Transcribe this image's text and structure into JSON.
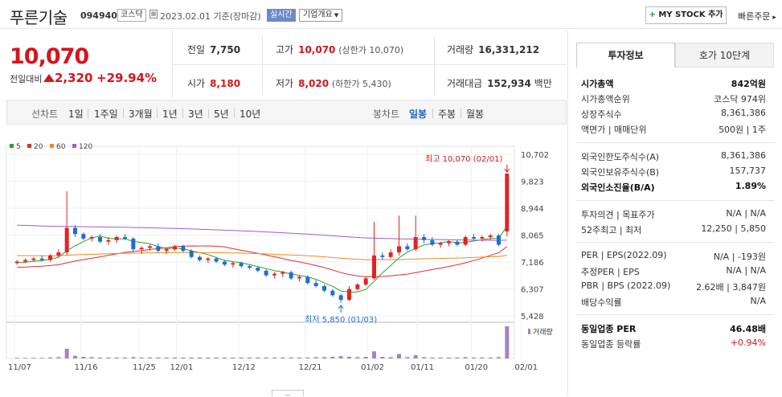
{
  "header": {
    "name": "푸른기술",
    "code": "094940",
    "market": "코스닥",
    "date_text": "2023.02.01 기준(장마감)",
    "live_label": "실시간",
    "overview_label": "기업개요",
    "mystock_label": "MY STOCK 추가",
    "quick_order_label": "빠른주문"
  },
  "quote": {
    "price": "10,070",
    "change_label": "전일대비",
    "change": "2,320",
    "change_pct": "+29.94%",
    "prev_close_label": "전일",
    "prev_close": "7,750",
    "high_label": "고가",
    "high": "10,070",
    "upper_limit": "(상한가 10,070)",
    "volume_label": "거래량",
    "volume": "16,331,212",
    "open_label": "시가",
    "open": "8,180",
    "low_label": "저가",
    "low": "8,020",
    "lower_limit": "(하한가 5,430)",
    "amount_label": "거래대금",
    "amount": "152,934",
    "amount_unit": "백만"
  },
  "chart_tabs": {
    "line_label": "선차트",
    "periods": [
      "1일",
      "1주일",
      "3개월",
      "1년",
      "3년",
      "5년",
      "10년"
    ],
    "candle_label": "봉차트",
    "candle": [
      "일봉",
      "주봉",
      "월봉"
    ],
    "active_candle": "일봉"
  },
  "chart_data": {
    "type": "line",
    "ma_legend": [
      {
        "name": "5",
        "color": "#2ca02c"
      },
      {
        "name": "20",
        "color": "#e02f2f"
      },
      {
        "name": "60",
        "color": "#f08a1c"
      },
      {
        "name": "120",
        "color": "#a05ccc"
      }
    ],
    "y_ticks": [
      "10,702",
      "9,823",
      "8,944",
      "8,065",
      "7,186",
      "6,307",
      "5,428"
    ],
    "ylim": [
      5428,
      10702
    ],
    "x_ticks": [
      "11/07",
      "11/16",
      "11/25",
      "12/01",
      "12/12",
      "12/21",
      "01/02",
      "01/11",
      "01/20",
      "02/01"
    ],
    "high_annotation": "최고 10,070 (02/01)",
    "low_annotation": "최저 5,850 (01/03)",
    "volume_label": "거래량",
    "candles": [
      [
        7150,
        7250,
        7100,
        7200
      ],
      [
        7200,
        7300,
        7150,
        7250
      ],
      [
        7250,
        7350,
        7200,
        7300
      ],
      [
        7300,
        7400,
        7200,
        7250
      ],
      [
        7250,
        7450,
        7200,
        7400
      ],
      [
        7400,
        7600,
        7350,
        7500
      ],
      [
        7500,
        9500,
        7400,
        8300
      ],
      [
        8300,
        8400,
        8000,
        8100
      ],
      [
        8100,
        8150,
        7900,
        7950
      ],
      [
        7950,
        8050,
        7850,
        8000
      ],
      [
        8000,
        8100,
        7800,
        7850
      ],
      [
        7850,
        8000,
        7750,
        7900
      ],
      [
        7900,
        8050,
        7800,
        8000
      ],
      [
        8000,
        8100,
        7900,
        7950
      ],
      [
        7950,
        8000,
        7500,
        7600
      ],
      [
        7600,
        7700,
        7450,
        7650
      ],
      [
        7650,
        7750,
        7550,
        7700
      ],
      [
        7700,
        7800,
        7500,
        7550
      ],
      [
        7550,
        7650,
        7450,
        7600
      ],
      [
        7600,
        7750,
        7550,
        7700
      ],
      [
        7700,
        7750,
        7500,
        7550
      ],
      [
        7550,
        7600,
        7300,
        7350
      ],
      [
        7350,
        7400,
        7200,
        7250
      ],
      [
        7250,
        7350,
        7150,
        7300
      ],
      [
        7300,
        7350,
        7150,
        7200
      ],
      [
        7200,
        7250,
        7050,
        7100
      ],
      [
        7100,
        7200,
        7000,
        7150
      ],
      [
        7150,
        7200,
        7000,
        7050
      ],
      [
        7050,
        7100,
        6950,
        7000
      ],
      [
        7000,
        7050,
        6850,
        6900
      ],
      [
        6900,
        6950,
        6700,
        6750
      ],
      [
        6750,
        6850,
        6650,
        6800
      ],
      [
        6800,
        6900,
        6700,
        6850
      ],
      [
        6850,
        6900,
        6600,
        6650
      ],
      [
        6650,
        6750,
        6550,
        6700
      ],
      [
        6700,
        6750,
        6450,
        6500
      ],
      [
        6500,
        6600,
        6350,
        6400
      ],
      [
        6400,
        6450,
        6200,
        6250
      ],
      [
        6250,
        6300,
        6050,
        6100
      ],
      [
        6100,
        6150,
        5850,
        5950
      ],
      [
        5950,
        6400,
        5900,
        6300
      ],
      [
        6300,
        6500,
        6250,
        6450
      ],
      [
        6450,
        6700,
        6400,
        6650
      ],
      [
        6650,
        8500,
        6600,
        7400
      ],
      [
        7400,
        7500,
        7250,
        7350
      ],
      [
        7350,
        7600,
        7300,
        7500
      ],
      [
        7500,
        8700,
        7400,
        7700
      ],
      [
        7700,
        7800,
        7550,
        7600
      ],
      [
        7600,
        8700,
        7550,
        8000
      ],
      [
        8000,
        8100,
        7800,
        7900
      ],
      [
        7900,
        8000,
        7700,
        7750
      ],
      [
        7750,
        7850,
        7650,
        7800
      ],
      [
        7800,
        7900,
        7700,
        7850
      ],
      [
        7850,
        7900,
        7700,
        7750
      ],
      [
        7750,
        8050,
        7700,
        8000
      ],
      [
        8000,
        8100,
        7900,
        7950
      ],
      [
        7950,
        8050,
        7850,
        8000
      ],
      [
        8000,
        8100,
        7900,
        8050
      ],
      [
        8050,
        8100,
        7700,
        7750
      ],
      [
        8180,
        10070,
        8020,
        10070
      ]
    ],
    "volumes": [
      2,
      2,
      2,
      2,
      3,
      4,
      30,
      8,
      5,
      4,
      3,
      3,
      3,
      3,
      4,
      3,
      3,
      3,
      3,
      3,
      3,
      3,
      3,
      3,
      3,
      3,
      3,
      3,
      3,
      3,
      3,
      3,
      3,
      3,
      3,
      3,
      4,
      4,
      5,
      7,
      5,
      4,
      5,
      22,
      5,
      4,
      14,
      4,
      10,
      4,
      3,
      3,
      3,
      3,
      4,
      3,
      3,
      3,
      4,
      100
    ]
  },
  "side": {
    "tab_active": "투자정보",
    "tab_other": "호가 10단계",
    "rows": [
      {
        "k": "시가총액",
        "v": "842억원",
        "bold": true
      },
      {
        "k": "시가총액순위",
        "v": "코스닥 974위"
      },
      {
        "k": "상장주식수",
        "v": "8,361,386"
      },
      {
        "k": "액면가 | 매매단위",
        "v": "500원 | 1주"
      },
      {
        "k": "외국인한도주식수(A)",
        "v": "8,361,386"
      },
      {
        "k": "외국인보유주식수(B)",
        "v": "157,737"
      },
      {
        "k": "외국인소진율(B/A)",
        "v": "1.89%",
        "bold": true
      },
      {
        "k": "투자의견 | 목표주가",
        "v": "N/A | N/A"
      },
      {
        "k": "52주최고 | 최저",
        "v": "12,250 | 5,850"
      },
      {
        "k": "PER | EPS(2022.09)",
        "v": "N/A | -193원"
      },
      {
        "k": "추정PER | EPS",
        "v": "N/A | N/A"
      },
      {
        "k": "PBR | BPS (2022.09)",
        "v": "2.62배 | 3,847원"
      },
      {
        "k": "배당수익률",
        "v": "N/A"
      },
      {
        "k": "동일업종 PER",
        "v": "46.48배",
        "bold": true
      },
      {
        "k": "동일업종 등락률",
        "v": "+0.94%"
      }
    ]
  }
}
